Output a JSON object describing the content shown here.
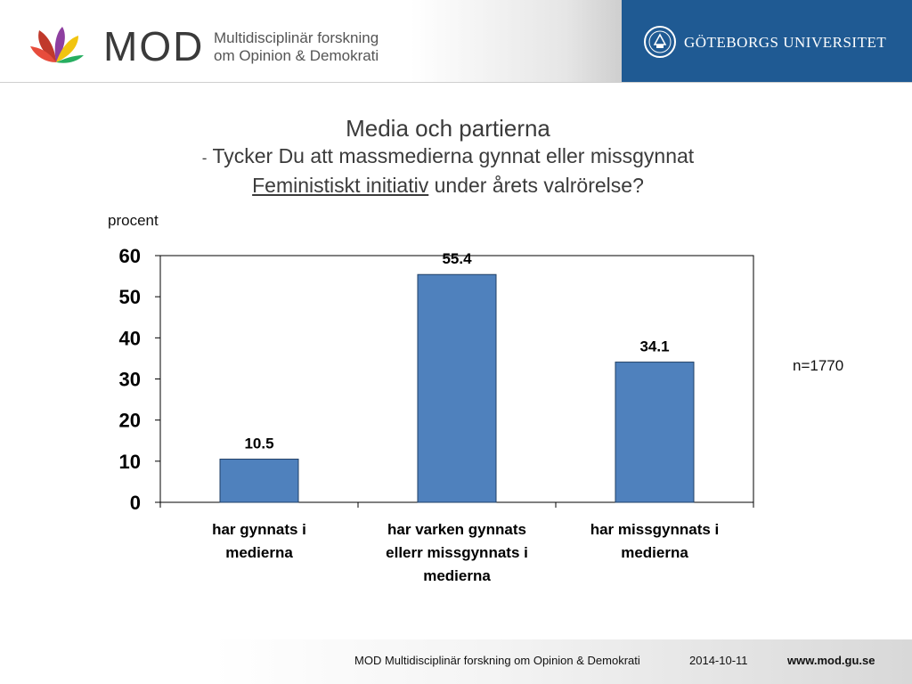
{
  "header": {
    "brand_word": "MOD",
    "brand_sub_line1": "Multidisciplinär forskning",
    "brand_sub_line2": "om Opinion & Demokrati",
    "university": "GÖTEBORGS UNIVERSITET",
    "university_panel_color": "#1f5a93",
    "logo_icon": "mod-flower-logo",
    "seal_icon": "university-seal"
  },
  "title": {
    "line1": "Media och partierna",
    "line2_dash": "-",
    "line2": "Tycker Du att massmedierna gynnat eller missgynnat",
    "line3_underlined": "Feministiskt initiativ",
    "line3_rest": "under årets valrörelse?"
  },
  "sample_note": "n=1770",
  "chart_data": {
    "type": "bar",
    "ylabel": "procent",
    "ylim": [
      0,
      60
    ],
    "yticks": [
      "0",
      "10",
      "20",
      "30",
      "40",
      "50",
      "60"
    ],
    "categories": [
      [
        "har gynnats i",
        "medierna"
      ],
      [
        "har varken gynnats",
        "ellerr missgynnats i",
        "medierna"
      ],
      [
        "har missgynnats i",
        "medierna"
      ]
    ],
    "values": [
      10.5,
      55.4,
      34.1
    ],
    "value_labels": [
      "10.5",
      "55.4",
      "34.1"
    ],
    "bar_color": "#4f81bd",
    "grid": false,
    "legend": "none"
  },
  "footer": {
    "org": "MOD Multidisciplinär forskning om Opinion & Demokrati",
    "date": "2014-10-11",
    "url": "www.mod.gu.se"
  }
}
